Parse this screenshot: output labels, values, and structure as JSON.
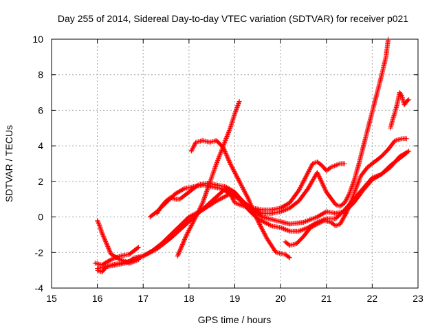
{
  "chart_data": {
    "type": "scatter",
    "title": "Day 255 of 2014, Sidereal Day-to-day VTEC variation (SDTVAR) for receiver p021",
    "xlabel": "GPS time / hours",
    "ylabel": "SDTVAR / TECUs",
    "xlim": [
      15,
      23
    ],
    "ylim": [
      -4,
      10
    ],
    "xticks": [
      "15",
      "16",
      "17",
      "18",
      "19",
      "20",
      "21",
      "22",
      "23"
    ],
    "yticks": [
      "-4",
      "-2",
      "0",
      "2",
      "4",
      "6",
      "8",
      "10"
    ],
    "grid": true,
    "marker": "plus",
    "color": "#ff0000",
    "series": [
      {
        "x": [
          15.95,
          16.1,
          16.3,
          16.5,
          16.7,
          16.9
        ],
        "y": [
          -2.6,
          -2.7,
          -2.4,
          -2.2,
          -2.1,
          -1.7
        ]
      },
      {
        "x": [
          16.0,
          16.1,
          16.2,
          16.3,
          16.5,
          16.7,
          16.8,
          17.0,
          17.2,
          17.4,
          17.6,
          17.8,
          18.0,
          18.3,
          18.6,
          18.9,
          19.1,
          19.3,
          19.5,
          19.8,
          20.0,
          20.2,
          20.4,
          20.6,
          20.8,
          21.0,
          21.2,
          21.4,
          21.6,
          21.8,
          22.0,
          22.2,
          22.4,
          22.6,
          22.75
        ],
        "y": [
          -3.0,
          -3.1,
          -2.8,
          -2.7,
          -2.6,
          -2.5,
          -2.3,
          -2.2,
          -1.9,
          -1.5,
          -1.0,
          -0.5,
          0.0,
          0.4,
          0.9,
          1.3,
          1.0,
          0.4,
          -0.1,
          -0.5,
          -0.6,
          -0.8,
          -0.8,
          -0.6,
          -0.3,
          -0.1,
          -0.1,
          0.4,
          1.0,
          1.6,
          2.2,
          2.4,
          2.9,
          3.3,
          3.6
        ]
      },
      {
        "x": [
          16.0,
          16.2,
          16.4,
          16.6,
          16.8,
          17.0,
          17.3,
          17.6,
          17.9,
          18.2,
          18.5,
          18.8,
          19.0,
          19.3,
          19.6,
          19.9,
          20.2,
          20.5,
          20.8,
          21.0,
          21.2,
          21.4,
          21.6,
          21.8,
          22.0,
          22.2,
          22.4,
          22.6,
          22.8
        ],
        "y": [
          -2.9,
          -2.8,
          -2.7,
          -2.6,
          -2.4,
          -2.2,
          -1.8,
          -1.2,
          -0.5,
          0.2,
          0.9,
          1.6,
          1.3,
          0.6,
          0.0,
          -0.2,
          -0.4,
          -0.3,
          0.0,
          0.3,
          0.2,
          0.3,
          0.8,
          1.5,
          2.1,
          2.4,
          2.8,
          3.4,
          3.7
        ]
      },
      {
        "x": [
          16.0,
          16.05,
          16.1,
          16.2,
          16.3,
          16.5,
          16.7,
          16.9
        ],
        "y": [
          -0.2,
          -0.5,
          -0.9,
          -1.5,
          -2.1,
          -2.4,
          -2.6,
          -2.4
        ]
      },
      {
        "x": [
          17.15,
          17.3,
          17.5,
          17.7,
          17.9,
          18.1,
          18.3,
          18.5,
          18.7,
          18.9,
          19.0,
          19.2,
          19.4,
          19.6,
          19.8,
          20.0,
          20.2,
          20.4,
          20.6,
          20.7,
          20.8,
          20.9,
          21.0,
          21.1,
          21.2,
          21.3,
          21.4
        ],
        "y": [
          0.0,
          0.3,
          0.8,
          1.3,
          1.6,
          1.7,
          1.8,
          1.7,
          1.6,
          1.3,
          0.8,
          0.6,
          0.5,
          0.4,
          0.4,
          0.5,
          0.8,
          1.5,
          2.5,
          3.0,
          3.1,
          2.9,
          2.6,
          2.8,
          2.9,
          3.0,
          3.0
        ]
      },
      {
        "x": [
          17.3,
          17.4,
          17.5,
          17.6,
          17.7,
          17.8,
          17.9,
          18.0,
          18.2,
          18.4,
          18.6,
          18.8,
          19.0,
          19.2,
          19.4,
          19.6,
          19.8,
          20.0,
          20.2,
          20.4,
          20.6,
          20.8,
          21.0,
          21.2,
          21.3,
          21.4,
          21.5,
          21.6,
          21.7,
          21.8,
          21.9,
          22.0,
          22.1,
          22.2,
          22.3,
          22.35
        ],
        "y": [
          0.2,
          0.6,
          0.9,
          1.1,
          1.0,
          1.0,
          1.2,
          1.4,
          1.8,
          1.9,
          1.8,
          1.7,
          1.4,
          0.8,
          0.4,
          0.2,
          0.2,
          0.3,
          0.5,
          0.9,
          1.6,
          2.5,
          1.4,
          0.7,
          0.6,
          0.8,
          1.3,
          2.0,
          2.9,
          3.9,
          4.9,
          5.9,
          6.9,
          7.9,
          9.0,
          10.0
        ]
      },
      {
        "x": [
          17.75,
          17.85,
          17.95,
          18.05,
          18.15,
          18.3,
          18.45,
          18.6,
          18.75,
          18.9,
          19.0,
          19.1
        ],
        "y": [
          -2.2,
          -1.6,
          -1.0,
          -0.5,
          0.0,
          0.8,
          1.9,
          3.0,
          4.0,
          5.0,
          5.8,
          6.5
        ]
      },
      {
        "x": [
          18.05,
          18.15,
          18.3,
          18.45,
          18.6,
          18.75,
          18.9,
          19.1,
          19.3,
          19.5,
          19.7,
          19.9,
          20.1,
          20.2
        ],
        "y": [
          3.7,
          4.2,
          4.3,
          4.2,
          4.3,
          3.9,
          3.0,
          2.0,
          1.0,
          -0.2,
          -1.2,
          -2.0,
          -2.1,
          -2.3
        ]
      },
      {
        "x": [
          20.1,
          20.2,
          20.35,
          20.5,
          20.65,
          20.8,
          20.95,
          21.1,
          21.2,
          21.3,
          21.45,
          21.6,
          21.75,
          21.9,
          22.05,
          22.2,
          22.35,
          22.5,
          22.65,
          22.75
        ],
        "y": [
          -1.4,
          -1.6,
          -1.5,
          -1.1,
          -0.6,
          -0.4,
          -0.2,
          -0.3,
          -0.5,
          -0.4,
          0.3,
          1.3,
          2.3,
          2.8,
          3.1,
          3.4,
          3.8,
          4.3,
          4.4,
          4.4
        ]
      },
      {
        "x": [
          22.4,
          22.45,
          22.5,
          22.55,
          22.6,
          22.65,
          22.7,
          22.75,
          22.8
        ],
        "y": [
          5.0,
          5.5,
          5.9,
          6.4,
          7.0,
          6.8,
          6.3,
          6.5,
          6.6
        ]
      }
    ]
  }
}
